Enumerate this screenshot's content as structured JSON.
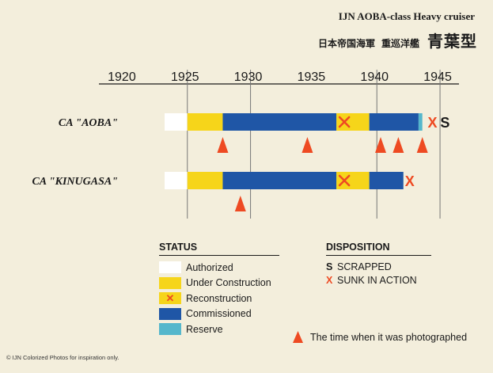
{
  "header": {
    "title": "IJN AOBA-class Heavy cruiser",
    "subtitle_navy": "日本帝国海軍",
    "subtitle_class": "重巡洋艦",
    "subtitle_type": "青葉型"
  },
  "chart_data": {
    "type": "timeline",
    "x_ticks": [
      1920,
      1925,
      1930,
      1935,
      1940,
      1945
    ],
    "xlim": [
      1918,
      1946.5
    ],
    "gridlines_at": [
      1925,
      1930,
      1940,
      1945
    ],
    "status_colors": {
      "authorized": "#ffffff",
      "under_construction": "#f6d51a",
      "reconstruction": "#f6d51a",
      "commissioned": "#1f56a6",
      "reserve": "#55b7cc"
    },
    "ships": [
      {
        "label": "CA \"AOBA\"",
        "segments": [
          {
            "status": "authorized",
            "start": 1923.2,
            "end": 1925.0
          },
          {
            "status": "under_construction",
            "start": 1925.0,
            "end": 1927.8
          },
          {
            "status": "commissioned",
            "start": 1927.8,
            "end": 1936.8
          },
          {
            "status": "reconstruction",
            "start": 1936.8,
            "end": 1939.4
          },
          {
            "status": "commissioned",
            "start": 1939.4,
            "end": 1943.3
          },
          {
            "status": "reserve",
            "start": 1943.3,
            "end": 1943.6
          }
        ],
        "photo_markers": [
          1927.8,
          1934.5,
          1940.3,
          1941.7,
          1943.6
        ],
        "disposition_markers": [
          {
            "code": "X",
            "year": 1944.4
          },
          {
            "code": "S",
            "year": 1945.4
          }
        ]
      },
      {
        "label": "CA \"KINUGASA\"",
        "segments": [
          {
            "status": "authorized",
            "start": 1923.2,
            "end": 1925.0
          },
          {
            "status": "under_construction",
            "start": 1925.0,
            "end": 1927.8
          },
          {
            "status": "commissioned",
            "start": 1927.8,
            "end": 1936.8
          },
          {
            "status": "reconstruction",
            "start": 1936.8,
            "end": 1939.4
          },
          {
            "status": "commissioned",
            "start": 1939.4,
            "end": 1942.1
          }
        ],
        "photo_markers": [
          1929.2
        ],
        "disposition_markers": [
          {
            "code": "X",
            "year": 1942.6
          }
        ]
      }
    ]
  },
  "legend": {
    "status_title": "STATUS",
    "status_items": [
      {
        "label": "Authorized",
        "color": "#ffffff",
        "mark": ""
      },
      {
        "label": "Under Construction",
        "color": "#f6d51a",
        "mark": ""
      },
      {
        "label": "Reconstruction",
        "color": "#f6d51a",
        "mark": "✕"
      },
      {
        "label": "Commissioned",
        "color": "#1f56a6",
        "mark": ""
      },
      {
        "label": "Reserve",
        "color": "#55b7cc",
        "mark": ""
      }
    ],
    "disposition_title": "DISPOSITION",
    "disposition_items": [
      {
        "code": "S",
        "label": "SCRAPPED",
        "color": "#1a1a1a"
      },
      {
        "code": "X",
        "label": "SUNK IN ACTION",
        "color": "#ee4a22"
      }
    ],
    "photo_note": "The time when it was photographed"
  },
  "footer": {
    "copyright": "© IJN Colorized Photos  for inspiration only."
  },
  "colors": {
    "background": "#f3eedc",
    "marker": "#ee4a22",
    "text": "#1a1a1a"
  }
}
